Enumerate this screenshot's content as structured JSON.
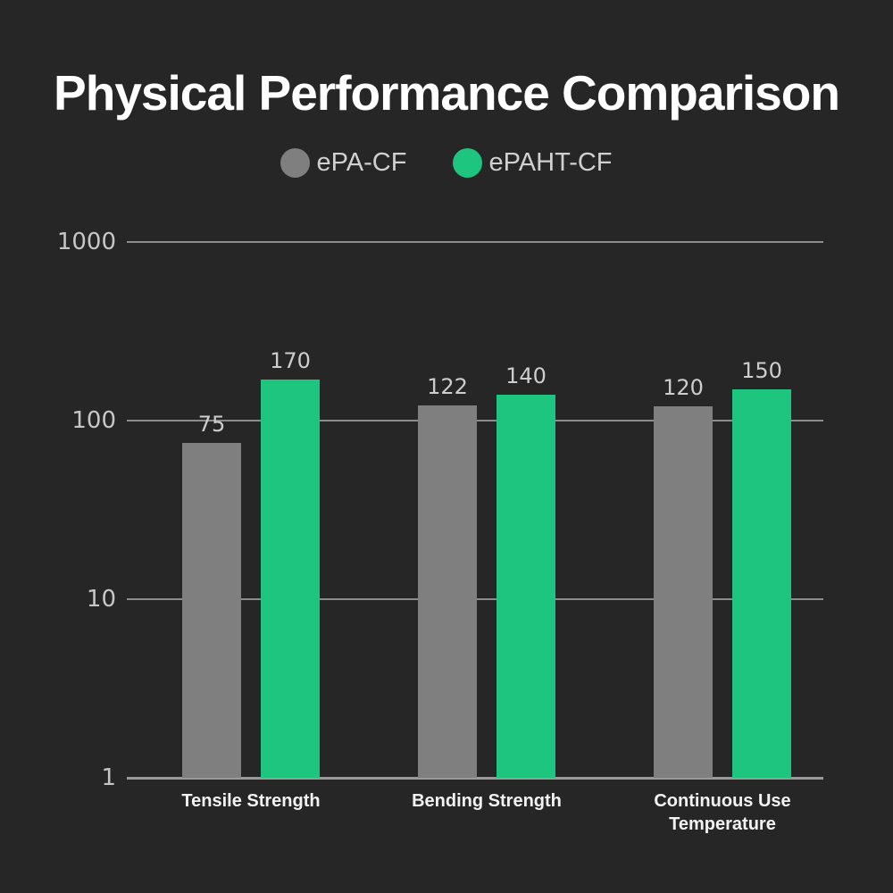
{
  "title": "Physical Performance Comparison",
  "legend": [
    {
      "label": "ePA-CF",
      "color": "#7f7f7f"
    },
    {
      "label": "ePAHT-CF",
      "color": "#1dc57e"
    }
  ],
  "chart_data": {
    "type": "bar",
    "scale": "log",
    "title": "Physical Performance Comparison",
    "categories": [
      "Tensile Strength",
      "Bending Strength",
      "Continuous Use Temperature"
    ],
    "series": [
      {
        "name": "ePA-CF",
        "color": "#7f7f7f",
        "values": [
          75,
          122,
          120
        ]
      },
      {
        "name": "ePAHT-CF",
        "color": "#1dc57e",
        "values": [
          170,
          140,
          150
        ]
      }
    ],
    "y_ticks": [
      1,
      10,
      100,
      1000
    ],
    "ylim": [
      1,
      1000
    ],
    "xlabel": "",
    "ylabel": "",
    "grid": true,
    "legend_position": "top",
    "colors": {
      "background": "#262626",
      "gridline": "#8c8c8c",
      "baseline": "#9a9a9a",
      "tick_label": "#c6c6c6",
      "value_label": "#cdcdcd",
      "category_label": "#f2f2f2",
      "title": "#ffffff",
      "legend_label": "#d0d0d0"
    }
  }
}
